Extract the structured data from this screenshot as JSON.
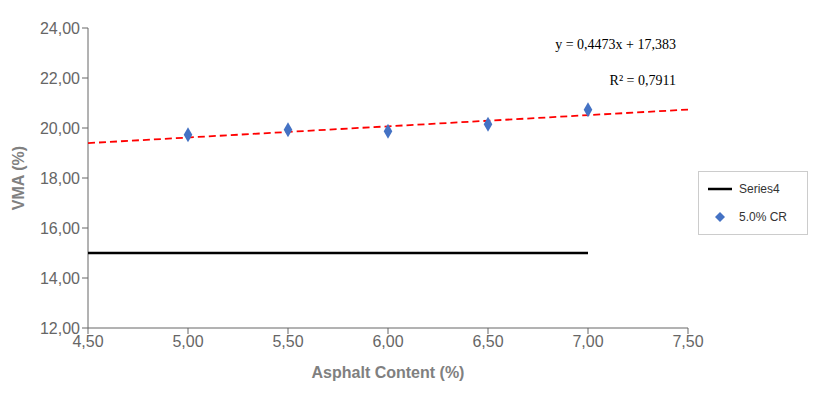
{
  "chart_data": {
    "type": "scatter",
    "xlabel": "Asphalt Content (%)",
    "ylabel": "VMA (%)",
    "xlim": [
      4.5,
      7.5
    ],
    "ylim": [
      12.0,
      24.0
    ],
    "xticks": [
      {
        "value": 4.5,
        "label": "4,50"
      },
      {
        "value": 5.0,
        "label": "5,00"
      },
      {
        "value": 5.5,
        "label": "5,50"
      },
      {
        "value": 6.0,
        "label": "6,00"
      },
      {
        "value": 6.5,
        "label": "6,50"
      },
      {
        "value": 7.0,
        "label": "7,00"
      },
      {
        "value": 7.5,
        "label": "7,50"
      }
    ],
    "yticks": [
      {
        "value": 12.0,
        "label": "12,00"
      },
      {
        "value": 14.0,
        "label": "14,00"
      },
      {
        "value": 16.0,
        "label": "16,00"
      },
      {
        "value": 18.0,
        "label": "18,00"
      },
      {
        "value": 20.0,
        "label": "20,00"
      },
      {
        "value": 22.0,
        "label": "22,00"
      },
      {
        "value": 24.0,
        "label": "24,00"
      }
    ],
    "grid": false,
    "legend": "right",
    "annotations": [
      "y = 0,4473x + 17,383",
      "R² = 0,7911"
    ],
    "series": [
      {
        "type": "line",
        "line_style": "dashed",
        "color": "#FF0000",
        "x": [
          4.5,
          7.5
        ],
        "values": [
          19.39585,
          20.73775
        ]
      },
      {
        "name": "Series4",
        "type": "line",
        "line_style": "solid",
        "color": "#000000",
        "x": [
          4.5,
          7.0
        ],
        "values": [
          15.0,
          15.0
        ]
      },
      {
        "name": "5.0% CR",
        "type": "scatter",
        "marker": "diamond",
        "color": "#4472C4",
        "x": [
          5.0,
          5.5,
          6.0,
          6.5,
          7.0
        ],
        "values": [
          19.73,
          19.93,
          19.87,
          20.15,
          20.73
        ]
      }
    ]
  }
}
